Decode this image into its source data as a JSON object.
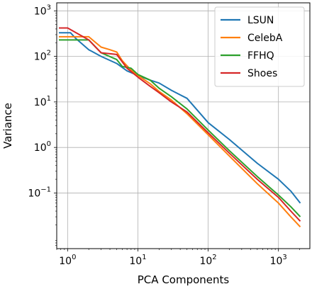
{
  "chart_data": {
    "type": "line",
    "title": "",
    "xlabel": "PCA Components",
    "ylabel": "Variance",
    "xscale": "log",
    "yscale": "log",
    "xlim": [
      0.7,
      2800
    ],
    "ylim": [
      0.006,
      1500
    ],
    "grid": true,
    "legend_position": "top-right",
    "x_ticks": [
      {
        "value": 1,
        "base": "10",
        "exp": "0"
      },
      {
        "value": 10,
        "base": "10",
        "exp": "1"
      },
      {
        "value": 100,
        "base": "10",
        "exp": "2"
      },
      {
        "value": 1000,
        "base": "10",
        "exp": "3"
      }
    ],
    "y_ticks": [
      {
        "value": 0.1,
        "base": "10",
        "exp": "−1"
      },
      {
        "value": 1,
        "base": "10",
        "exp": "0"
      },
      {
        "value": 10,
        "base": "10",
        "exp": "1"
      },
      {
        "value": 100,
        "base": "10",
        "exp": "2"
      },
      {
        "value": 1000,
        "base": "10",
        "exp": "3"
      }
    ],
    "series": [
      {
        "name": "LSUN",
        "color": "#1f77b4",
        "x": [
          0.75,
          1.1,
          1.3,
          2,
          3,
          5,
          7,
          10,
          15,
          20,
          30,
          50,
          100,
          200,
          500,
          1000,
          1500,
          2048
        ],
        "y": [
          330,
          330,
          250,
          140,
          100,
          70,
          48,
          38,
          30,
          26,
          18,
          12,
          3.5,
          1.5,
          0.45,
          0.2,
          0.11,
          0.06
        ]
      },
      {
        "name": "CelebA",
        "color": "#ff7f0e",
        "x": [
          0.75,
          1,
          2,
          3,
          4,
          5,
          6,
          8,
          10,
          15,
          20,
          30,
          50,
          100,
          200,
          500,
          1000,
          1500,
          2048
        ],
        "y": [
          270,
          270,
          270,
          160,
          140,
          125,
          80,
          50,
          38,
          25,
          17,
          11,
          5.5,
          1.9,
          0.65,
          0.16,
          0.06,
          0.03,
          0.018
        ]
      },
      {
        "name": "FFHQ",
        "color": "#2ca02c",
        "x": [
          0.75,
          1,
          2,
          3,
          5,
          6,
          8,
          10,
          15,
          20,
          30,
          50,
          100,
          200,
          500,
          1000,
          1500,
          2048
        ],
        "y": [
          230,
          230,
          230,
          120,
          85,
          60,
          55,
          40,
          30,
          20,
          13,
          7,
          2.4,
          0.85,
          0.23,
          0.09,
          0.05,
          0.03
        ]
      },
      {
        "name": "Shoes",
        "color": "#d62728",
        "x": [
          0.75,
          1,
          2,
          3,
          5,
          7,
          10,
          15,
          20,
          30,
          50,
          100,
          200,
          500,
          1000,
          1500,
          2048
        ],
        "y": [
          420,
          420,
          230,
          120,
          110,
          55,
          35,
          22,
          16,
          10,
          6,
          2.1,
          0.75,
          0.2,
          0.08,
          0.04,
          0.024
        ]
      }
    ]
  }
}
